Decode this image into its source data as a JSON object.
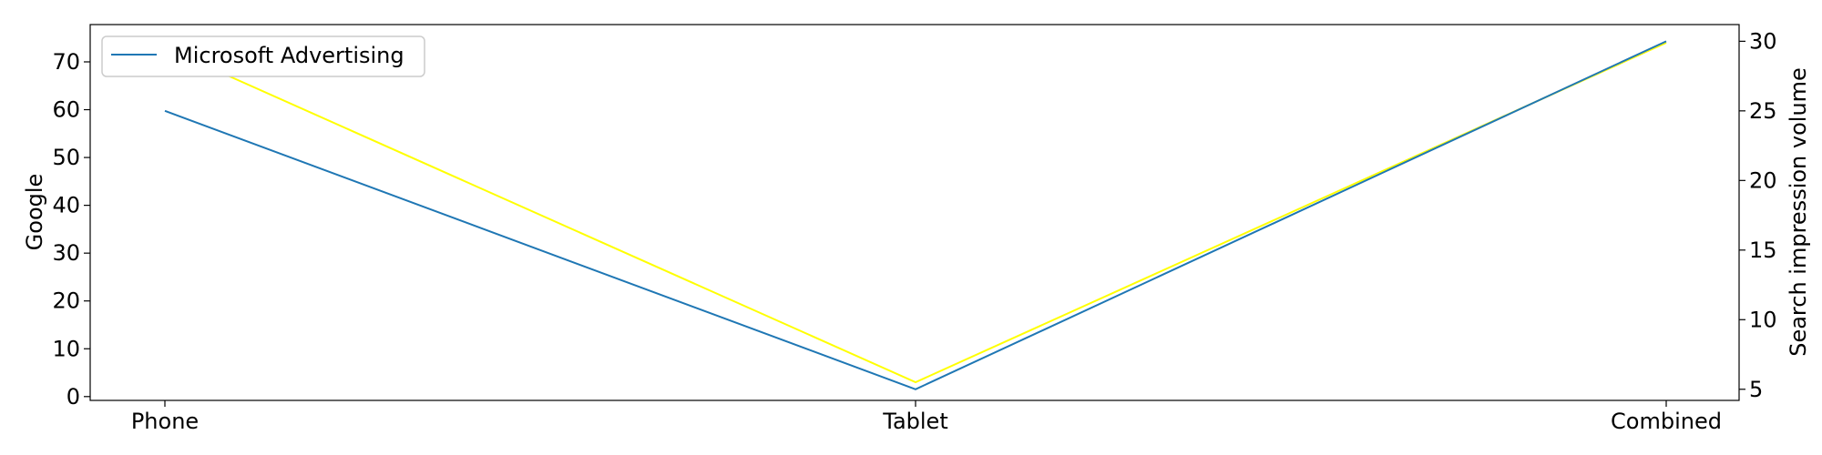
{
  "chart_data": {
    "type": "line",
    "categories": [
      "Phone",
      "Tablet",
      "Combined"
    ],
    "y_left": {
      "label": "Google",
      "ylim": [
        -0.8,
        77.8
      ],
      "ticks": [
        0,
        10,
        20,
        30,
        40,
        50,
        60,
        70
      ]
    },
    "y_right": {
      "label": "Search impression volume",
      "ylim": [
        4.2,
        31.2
      ],
      "ticks": [
        5,
        10,
        15,
        20,
        25,
        30
      ]
    },
    "series": [
      {
        "name": "",
        "axis": "left",
        "color": "#ffff00",
        "values": [
          73,
          3,
          74
        ]
      },
      {
        "name": "Microsoft Advertising",
        "axis": "right",
        "color": "#1f77b4",
        "values": [
          25,
          5,
          30
        ]
      }
    ],
    "legend": {
      "position": "top-left",
      "entries": [
        "Microsoft Advertising"
      ]
    },
    "grid": false
  }
}
